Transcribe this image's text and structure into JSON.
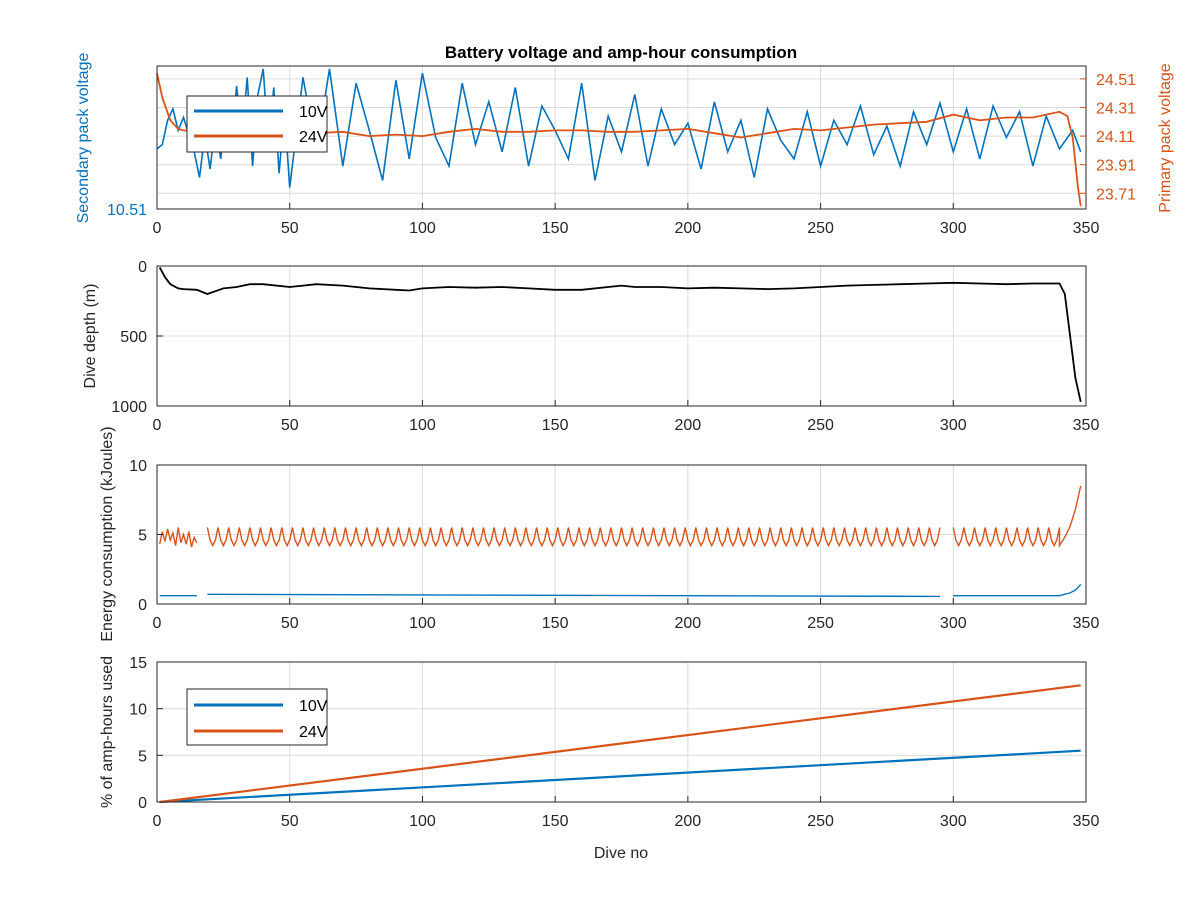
{
  "figure": {
    "title": "Battery voltage and amp-hour consumption",
    "colors": {
      "blue": "#0072BD",
      "orange": "#D95319",
      "black": "#000000",
      "grid": "#dcdcdc"
    }
  },
  "chart_data": [
    {
      "type": "line",
      "title": "Battery voltage and amp-hour consumption",
      "xlabel": "",
      "ylabel": "Secondary pack voltage",
      "ylabel_right": "Primary pack voltage",
      "xlim": [
        0,
        350
      ],
      "xticks": [
        0,
        50,
        100,
        150,
        200,
        250,
        300,
        350
      ],
      "left_yticks": [
        "10.51"
      ],
      "right_yticks": [
        "24.51",
        "24.31",
        "24.11",
        "23.91",
        "23.71"
      ],
      "right_ylim": [
        23.6,
        24.6
      ],
      "grid": true,
      "legend": {
        "position": "top-left",
        "entries": [
          "10V",
          "24V"
        ]
      },
      "series": [
        {
          "name": "10V",
          "axis": "left",
          "x": [
            0,
            2,
            4,
            6,
            8,
            10,
            12,
            14,
            16,
            18,
            20,
            22,
            24,
            26,
            28,
            30,
            32,
            34,
            36,
            38,
            40,
            42,
            44,
            46,
            48,
            50,
            55,
            60,
            65,
            70,
            75,
            80,
            85,
            90,
            95,
            100,
            105,
            110,
            115,
            120,
            125,
            130,
            135,
            140,
            145,
            150,
            155,
            160,
            165,
            170,
            175,
            180,
            185,
            190,
            195,
            200,
            205,
            210,
            215,
            220,
            225,
            230,
            235,
            240,
            245,
            250,
            255,
            260,
            265,
            270,
            275,
            280,
            285,
            290,
            295,
            300,
            305,
            310,
            315,
            320,
            325,
            330,
            335,
            340,
            345,
            348
          ],
          "y": [
            0.42,
            0.45,
            0.62,
            0.7,
            0.55,
            0.64,
            0.52,
            0.4,
            0.22,
            0.52,
            0.28,
            0.6,
            0.35,
            0.7,
            0.45,
            0.86,
            0.5,
            0.92,
            0.3,
            0.8,
            0.98,
            0.45,
            0.85,
            0.25,
            0.7,
            0.15,
            0.92,
            0.4,
            0.98,
            0.3,
            0.88,
            0.55,
            0.2,
            0.9,
            0.35,
            0.95,
            0.5,
            0.3,
            0.88,
            0.45,
            0.75,
            0.4,
            0.85,
            0.3,
            0.72,
            0.55,
            0.35,
            0.88,
            0.2,
            0.65,
            0.4,
            0.8,
            0.3,
            0.7,
            0.45,
            0.6,
            0.28,
            0.75,
            0.4,
            0.62,
            0.22,
            0.7,
            0.48,
            0.35,
            0.68,
            0.3,
            0.62,
            0.45,
            0.72,
            0.38,
            0.58,
            0.3,
            0.68,
            0.45,
            0.74,
            0.4,
            0.7,
            0.35,
            0.72,
            0.5,
            0.68,
            0.3,
            0.65,
            0.42,
            0.55,
            0.4
          ],
          "y_scale": "relative (no numeric ticks except 10.51)"
        },
        {
          "name": "24V",
          "axis": "right",
          "x": [
            0,
            2,
            5,
            8,
            10,
            15,
            20,
            25,
            30,
            40,
            50,
            60,
            70,
            80,
            90,
            100,
            110,
            120,
            130,
            140,
            150,
            160,
            170,
            180,
            190,
            200,
            210,
            220,
            230,
            240,
            250,
            260,
            270,
            280,
            290,
            300,
            310,
            320,
            330,
            340,
            343,
            345,
            347,
            348
          ],
          "y": [
            24.55,
            24.38,
            24.22,
            24.16,
            24.15,
            24.14,
            24.12,
            24.14,
            24.16,
            24.13,
            24.12,
            24.13,
            24.14,
            24.11,
            24.12,
            24.11,
            24.14,
            24.16,
            24.14,
            24.14,
            24.15,
            24.15,
            24.14,
            24.14,
            24.15,
            24.16,
            24.13,
            24.1,
            24.13,
            24.16,
            24.15,
            24.17,
            24.19,
            24.2,
            24.21,
            24.26,
            24.22,
            24.24,
            24.24,
            24.28,
            24.25,
            24.1,
            23.75,
            23.62
          ]
        }
      ]
    },
    {
      "type": "line",
      "xlabel": "",
      "ylabel": "Dive depth (m)",
      "xlim": [
        0,
        350
      ],
      "ylim": [
        0,
        1000
      ],
      "y_reversed": true,
      "xticks": [
        0,
        50,
        100,
        150,
        200,
        250,
        300,
        350
      ],
      "yticks": [
        0,
        500,
        1000
      ],
      "grid": true,
      "series": [
        {
          "name": "",
          "x": [
            1,
            3,
            5,
            8,
            10,
            15,
            19,
            22,
            25,
            30,
            35,
            40,
            50,
            55,
            60,
            70,
            80,
            90,
            95,
            100,
            110,
            120,
            130,
            140,
            150,
            160,
            170,
            175,
            180,
            190,
            200,
            210,
            220,
            230,
            240,
            250,
            260,
            270,
            280,
            290,
            300,
            310,
            320,
            330,
            340,
            342,
            344,
            346,
            348
          ],
          "y": [
            10,
            80,
            130,
            160,
            165,
            170,
            200,
            180,
            160,
            150,
            130,
            130,
            150,
            140,
            130,
            140,
            160,
            170,
            175,
            160,
            150,
            155,
            150,
            160,
            170,
            170,
            150,
            140,
            150,
            150,
            160,
            155,
            160,
            165,
            160,
            150,
            140,
            135,
            130,
            125,
            120,
            125,
            130,
            125,
            125,
            200,
            500,
            800,
            970
          ]
        }
      ]
    },
    {
      "type": "line",
      "xlabel": "",
      "ylabel": "Energy consumption (kJoules)",
      "xlim": [
        0,
        350
      ],
      "ylim": [
        0,
        10
      ],
      "xticks": [
        0,
        50,
        100,
        150,
        200,
        250,
        300,
        350
      ],
      "yticks": [
        0,
        5,
        10
      ],
      "grid": true,
      "series": [
        {
          "name": "24V",
          "gaps": [
            [
              15,
              19
            ],
            [
              295,
              300
            ]
          ],
          "summary": "oscillating between ~4.0 and ~5.7 from dive 1 to 345, with gaps near dives 15-19 and 295-300, spike to 8.5 at dive 348",
          "x": [
            1,
            2,
            3,
            4,
            5,
            6,
            7,
            8,
            9,
            10,
            11,
            12,
            13,
            14,
            15
          ],
          "y": [
            4.3,
            5.2,
            4.5,
            5.4,
            4.6,
            5.1,
            4.2,
            5.5,
            4.4,
            5.0,
            4.3,
            5.2,
            4.1,
            4.8,
            4.4
          ],
          "mid_range": [
            4.0,
            5.8
          ],
          "end_x": [
            340,
            342,
            344,
            346,
            348
          ],
          "end_y": [
            4.2,
            4.8,
            5.6,
            6.8,
            8.5
          ]
        },
        {
          "name": "10V",
          "gaps": [
            [
              15,
              19
            ],
            [
              295,
              300
            ]
          ],
          "level": 0.6,
          "end_x": [
            340,
            344,
            346,
            348
          ],
          "end_y": [
            0.6,
            0.8,
            1.0,
            1.4
          ]
        }
      ]
    },
    {
      "type": "line",
      "xlabel": "Dive no",
      "ylabel": "% of amp-hours used",
      "xlim": [
        0,
        350
      ],
      "ylim": [
        0,
        15
      ],
      "xticks": [
        0,
        50,
        100,
        150,
        200,
        250,
        300,
        350
      ],
      "yticks": [
        0,
        5,
        10,
        15
      ],
      "grid": true,
      "legend": {
        "position": "top-left",
        "entries": [
          "10V",
          "24V"
        ]
      },
      "series": [
        {
          "name": "10V",
          "x": [
            1,
            348
          ],
          "y": [
            0.0,
            5.5
          ]
        },
        {
          "name": "24V",
          "x": [
            1,
            348
          ],
          "y": [
            0.0,
            12.5
          ]
        }
      ]
    }
  ]
}
